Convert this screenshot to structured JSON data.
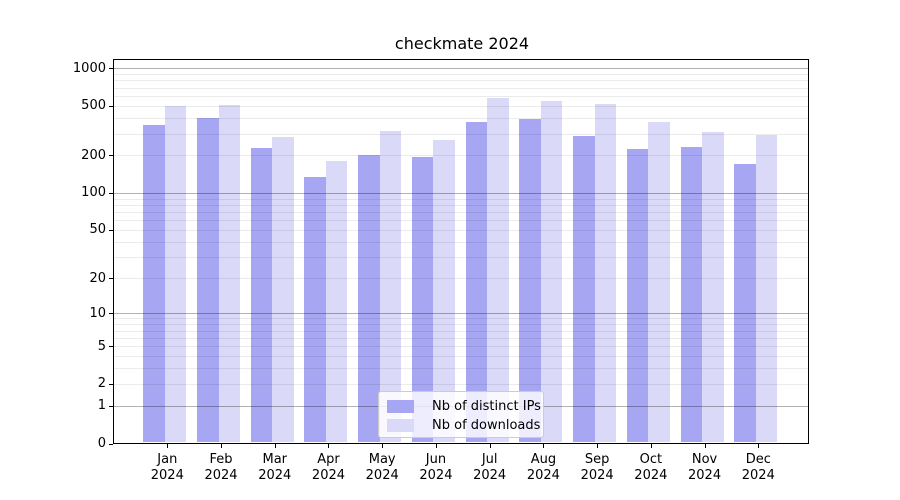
{
  "title": "checkmate 2024",
  "chart_data": {
    "type": "bar",
    "title": "checkmate 2024",
    "scale": "log10(1+x)",
    "categories": [
      "Jan",
      "Feb",
      "Mar",
      "Apr",
      "May",
      "Jun",
      "Jul",
      "Aug",
      "Sep",
      "Oct",
      "Nov",
      "Dec"
    ],
    "year_label": "2024",
    "series": [
      {
        "name": "Nb of distinct IPs",
        "color": "#a6a6f2",
        "values": [
          350,
          400,
          230,
          135,
          200,
          196,
          370,
          390,
          288,
          224,
          235,
          170
        ]
      },
      {
        "name": "Nb of downloads",
        "color": "#dadaf8",
        "values": [
          500,
          508,
          283,
          180,
          315,
          265,
          575,
          545,
          518,
          372,
          310,
          290
        ]
      }
    ],
    "y_ticks": [
      0,
      1,
      2,
      5,
      10,
      20,
      50,
      100,
      200,
      500,
      1000
    ],
    "y_major_gridlines": [
      1,
      10,
      100,
      1000
    ],
    "ylim": [
      0,
      1165
    ],
    "grid": true,
    "legend_position": "lower center",
    "colors": {
      "ips_bar": "#a6a6f2",
      "downloads_bar": "#dadaf8",
      "major_grid": "#b3b3b3",
      "minor_grid": "#ebebeb"
    }
  }
}
